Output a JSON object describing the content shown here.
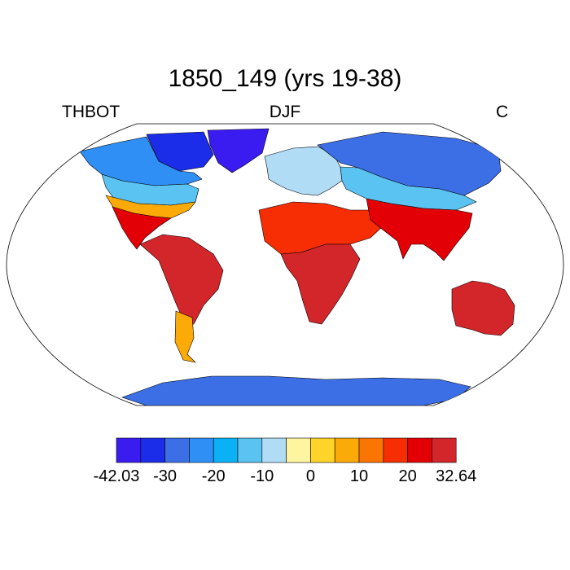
{
  "title": "1850_149 (yrs 19-38)",
  "left_label": "THBOT",
  "center_label": "DJF",
  "right_label": "C",
  "colorbar": {
    "colors": [
      "#3a1cf0",
      "#1b2de8",
      "#3c6fe6",
      "#2f8ff5",
      "#0ab2f5",
      "#5bc3f2",
      "#b0dcf6",
      "#fff5a0",
      "#fed42a",
      "#fcaa08",
      "#fb7503",
      "#f72d04",
      "#e20006",
      "#d3262b"
    ],
    "tick_labels": [
      "-42.03",
      "-30",
      "-20",
      "-10",
      "0",
      "10",
      "20",
      "32.64"
    ]
  },
  "chart_data": {
    "type": "heatmap",
    "variable": "THBOT",
    "season": "DJF",
    "units": "C",
    "value_range": [
      -42.03,
      32.64
    ],
    "colorbar_ticks": [
      -42.03,
      -30,
      -20,
      -10,
      0,
      10,
      20,
      32.64
    ],
    "regions": [
      {
        "name": "greenland",
        "class": 0
      },
      {
        "name": "northern-canada",
        "class": 1
      },
      {
        "name": "alaska-canada",
        "class": 3
      },
      {
        "name": "central-north-america",
        "class": 5
      },
      {
        "name": "southern-north-america",
        "class": 9
      },
      {
        "name": "central-america",
        "class": 12
      },
      {
        "name": "south-america",
        "class": 13
      },
      {
        "name": "patagonia",
        "class": 9
      },
      {
        "name": "europe",
        "class": 6
      },
      {
        "name": "siberia",
        "class": 2
      },
      {
        "name": "central-asia",
        "class": 5
      },
      {
        "name": "north-africa-middle-east",
        "class": 11
      },
      {
        "name": "sub-saharan-africa",
        "class": 13
      },
      {
        "name": "india-southeast-asia",
        "class": 12
      },
      {
        "name": "australia",
        "class": 13
      },
      {
        "name": "antarctica",
        "class": 2
      }
    ]
  }
}
